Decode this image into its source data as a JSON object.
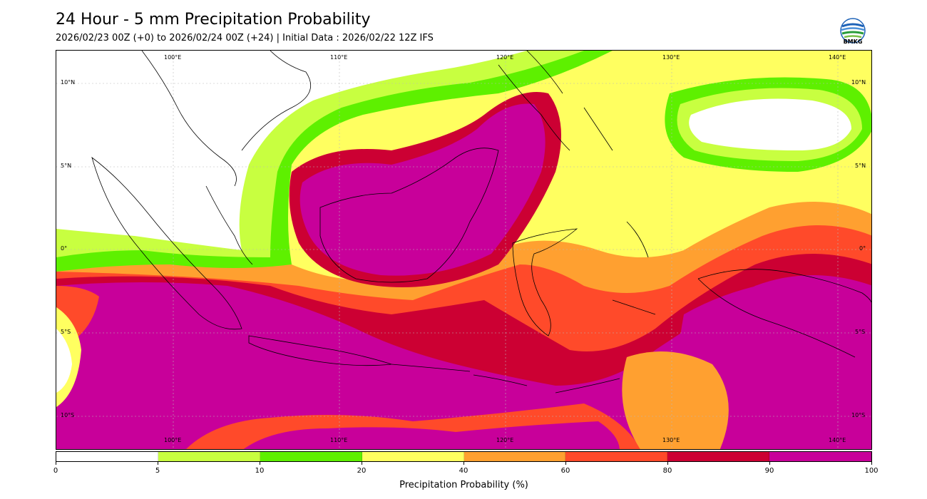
{
  "header": {
    "title": "24 Hour - 5 mm Precipitation Probability",
    "subtitle": "2026/02/23 00Z (+0) to 2026/02/24 00Z (+24) | Initial Data : 2026/02/22 12Z IFS"
  },
  "logo": {
    "text": "BMKG",
    "icon": "bmkg-logo-icon"
  },
  "map": {
    "longitude_labels": [
      "100°E",
      "110°E",
      "120°E",
      "130°E",
      "140°E"
    ],
    "latitude_labels": [
      "10°N",
      "5°N",
      "0°",
      "5°S",
      "10°S"
    ],
    "colors": {
      "p0": "#ffffff",
      "p5": "#c8ff40",
      "p10": "#5ef000",
      "p20": "#ffff60",
      "p40": "#ffa030",
      "p60": "#ff4a2a",
      "p80": "#cc0033",
      "p90": "#c8009a"
    }
  },
  "colorbar": {
    "ticks": [
      "0",
      "5",
      "10",
      "20",
      "40",
      "60",
      "80",
      "90",
      "100"
    ],
    "label": "Precipitation Probability (%)"
  }
}
